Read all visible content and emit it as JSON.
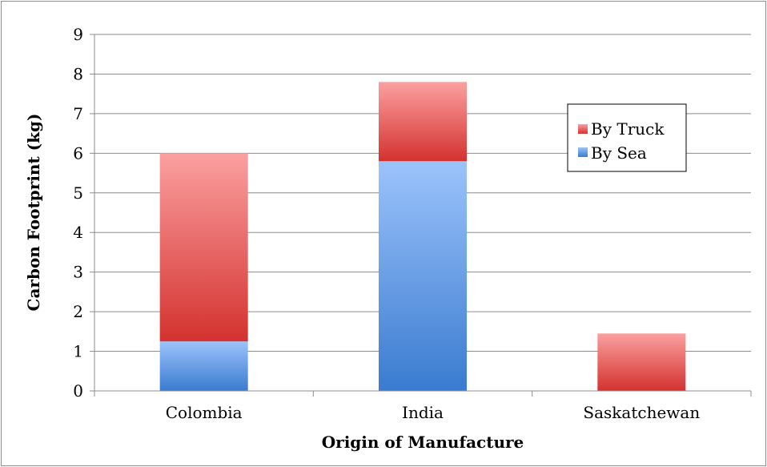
{
  "chart_data": {
    "type": "bar",
    "stacked": true,
    "title": "",
    "xlabel": "Origin of Manufacture",
    "ylabel": "Carbon Footprint (kg)",
    "ylim": [
      0,
      9
    ],
    "yticks": [
      "0",
      "1",
      "2",
      "3",
      "4",
      "5",
      "6",
      "7",
      "8",
      "9"
    ],
    "grid": true,
    "legend_position": "right",
    "categories": [
      "Colombia",
      "India",
      "Saskatchewan"
    ],
    "series": [
      {
        "name": "By Sea",
        "values": [
          1.25,
          5.8,
          0
        ],
        "color": "#4a86d6"
      },
      {
        "name": "By Truck",
        "values": [
          4.75,
          2.0,
          1.45
        ],
        "color": "#d94a47"
      }
    ],
    "legend_entries": [
      "By Truck",
      "By Sea"
    ]
  }
}
